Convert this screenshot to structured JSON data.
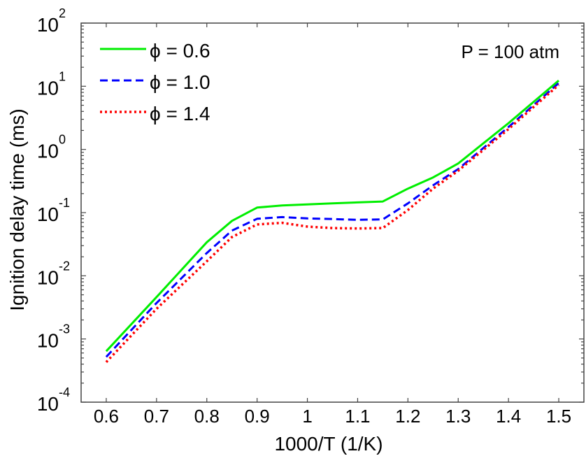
{
  "chart_data": {
    "type": "line",
    "title": "",
    "xlabel": "1000/T (1/K)",
    "ylabel": "Ignition delay time (ms)",
    "xlim": [
      0.55,
      1.55
    ],
    "ylim": [
      0.0001,
      100
    ],
    "yscale": "log",
    "grid": false,
    "legend_position": "top-left",
    "annotation": "P = 100 atm",
    "x_ticks": [
      "0.6",
      "0.7",
      "0.8",
      "0.9",
      "1",
      "1.1",
      "1.2",
      "1.3",
      "1.4",
      "1.5"
    ],
    "y_ticks": [
      {
        "base": "10",
        "exp": "-4"
      },
      {
        "base": "10",
        "exp": "-3"
      },
      {
        "base": "10",
        "exp": "-2"
      },
      {
        "base": "10",
        "exp": "-1"
      },
      {
        "base": "10",
        "exp": "0"
      },
      {
        "base": "10",
        "exp": "1"
      },
      {
        "base": "10",
        "exp": "2"
      }
    ],
    "x": [
      0.6,
      0.7,
      0.8,
      0.85,
      0.9,
      0.95,
      1.0,
      1.05,
      1.1,
      1.15,
      1.2,
      1.25,
      1.3,
      1.4,
      1.5
    ],
    "series": [
      {
        "name": "ϕ = 0.6",
        "color": "#00ee00",
        "style": "solid",
        "values": [
          0.00064,
          0.0046,
          0.034,
          0.074,
          0.12,
          0.13,
          0.135,
          0.14,
          0.145,
          0.15,
          0.24,
          0.36,
          0.6,
          2.6,
          12.3
        ]
      },
      {
        "name": "ϕ = 1.0",
        "color": "#0000ff",
        "style": "dashed",
        "values": [
          0.00052,
          0.0037,
          0.023,
          0.052,
          0.08,
          0.085,
          0.081,
          0.079,
          0.077,
          0.078,
          0.14,
          0.27,
          0.49,
          2.26,
          11.2
        ]
      },
      {
        "name": "ϕ = 1.4",
        "color": "#ff0000",
        "style": "dotted",
        "values": [
          0.00043,
          0.003,
          0.017,
          0.041,
          0.065,
          0.069,
          0.06,
          0.057,
          0.056,
          0.057,
          0.11,
          0.24,
          0.46,
          2.1,
          10.5
        ]
      }
    ]
  }
}
